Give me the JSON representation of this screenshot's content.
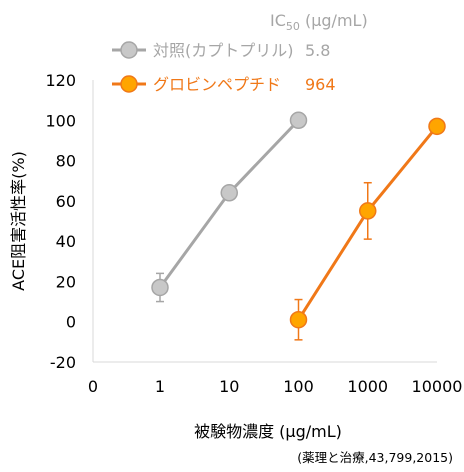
{
  "chart_data": {
    "type": "scatter",
    "x_scale": "log10",
    "x_ticks": [
      {
        "label": "0",
        "value": "0"
      },
      {
        "label": "1",
        "value": 1
      },
      {
        "label": "10",
        "value": 10
      },
      {
        "label": "100",
        "value": 100
      },
      {
        "label": "1000",
        "value": 1000
      },
      {
        "label": "10000",
        "value": 10000
      }
    ],
    "ylim": [
      -20,
      120
    ],
    "y_ticks": [
      -20,
      0,
      20,
      40,
      60,
      80,
      100,
      120
    ],
    "xlabel": "被験物濃度 (μg/mL)",
    "ylabel": "ACE阻害活性率(%)",
    "legend_header_prefix": "IC",
    "legend_header_sub": "50",
    "legend_header_suffix": " (μg/mL)",
    "source": "(薬理と治療,43,799,2015)",
    "series": [
      {
        "name": "対照(カプトプリル)",
        "ic50": "5.8",
        "color": "#a6a6a6",
        "marker_fill": "#c8c8c8",
        "points": [
          {
            "x": 1,
            "y": 17,
            "err": 7
          },
          {
            "x": 10,
            "y": 64,
            "err": null
          },
          {
            "x": 100,
            "y": 100,
            "err": null
          }
        ]
      },
      {
        "name": "グロビンペプチド",
        "ic50": "964",
        "color": "#f07818",
        "marker_fill": "#ffa500",
        "points": [
          {
            "x": 100,
            "y": 1,
            "err": 10
          },
          {
            "x": 1000,
            "y": 55,
            "err": 14
          },
          {
            "x": 10000,
            "y": 97,
            "err": null
          }
        ]
      }
    ]
  }
}
